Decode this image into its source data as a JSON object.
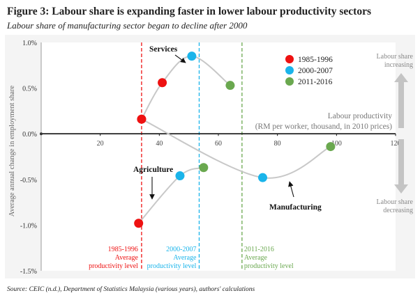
{
  "title": "Figure 3: Labour share is expanding faster in lower labour productivity sectors",
  "subtitle": "Labour share of manufacturing sector began to decline after 2000",
  "source": "Source: CEIC (n.d.), Department of Statistics Malaysia (various years), authors' calculations",
  "colors": {
    "p1": "#ee1111",
    "p2": "#1ab4ea",
    "p3": "#6aa84f",
    "curve": "#c8c8c8"
  },
  "chart_data": {
    "type": "scatter",
    "xlabel": "Labour productivity",
    "xlabel2": "(RM per worker, thousand, in 2010 prices)",
    "ylabel": "Average annual change in employment share",
    "xlim": [
      0,
      120
    ],
    "ylim": [
      -1.5,
      1.0
    ],
    "xticks": [
      {
        "v": 0,
        "label": "0"
      },
      {
        "v": 20,
        "label": "20"
      },
      {
        "v": 40,
        "label": "40"
      },
      {
        "v": 60,
        "label": "60"
      },
      {
        "v": 80,
        "label": "80"
      },
      {
        "v": 100,
        "label": "100"
      },
      {
        "v": 120,
        "label": "120"
      }
    ],
    "yticks": [
      {
        "v": 1.0,
        "label": "1.0%"
      },
      {
        "v": 0.5,
        "label": "0.5%"
      },
      {
        "v": 0.0,
        "label": "0.0%"
      },
      {
        "v": -0.5,
        "label": "-0.5%"
      },
      {
        "v": -1.0,
        "label": "-1.0%"
      },
      {
        "v": -1.5,
        "label": "-1.5%"
      }
    ],
    "legend": [
      {
        "name": "1985-1996",
        "color": "#ee1111"
      },
      {
        "name": "2000-2007",
        "color": "#1ab4ea"
      },
      {
        "name": "2011-2016",
        "color": "#6aa84f"
      }
    ],
    "sectors": [
      {
        "name": "Services",
        "points": [
          [
            34,
            0.16
          ],
          [
            41,
            0.56
          ],
          [
            51,
            0.85
          ],
          [
            64,
            0.53
          ]
        ]
      },
      {
        "name": "Agriculture",
        "points": [
          [
            33,
            -0.98
          ],
          [
            47,
            -0.46
          ],
          [
            55,
            -0.37
          ]
        ]
      },
      {
        "name": "Manufacturing",
        "points": [
          [
            34,
            0.16
          ],
          [
            75,
            -0.48
          ],
          [
            98,
            -0.14
          ]
        ]
      }
    ],
    "vlines": [
      {
        "x": 34,
        "color": "#ee1111",
        "label": [
          "1985-1996",
          "Average",
          "productivity level"
        ]
      },
      {
        "x": 53.5,
        "color": "#1ab4ea",
        "label": [
          "2000-2007",
          "Average",
          "productivity level"
        ]
      },
      {
        "x": 68,
        "color": "#6aa84f",
        "label": [
          "2011-2016",
          "Average",
          "productivity level"
        ]
      }
    ],
    "annotations": {
      "services": "Services",
      "agriculture": "Agriculture",
      "manufacturing": "Manufacturing",
      "increasing": [
        "Labour share",
        "increasing"
      ],
      "decreasing": [
        "Labour share",
        "decreasing"
      ]
    }
  }
}
